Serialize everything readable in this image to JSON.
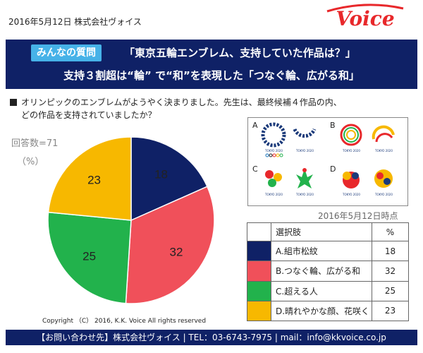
{
  "header": {
    "date_company": "2016年5月12日 株式会社ヴォイス",
    "logo_text": "Voice"
  },
  "banner": {
    "badge": "みんなの質問",
    "headline1": "「東京五輪エンブレム、支持していた作品は？」",
    "headline2": "支持３割超は“輪” で“和”を表現した「つなぐ輪、広がる和」"
  },
  "question": {
    "line1": "オリンピックのエンブレムがようやく決まりました。先生は、最終候補４作品の内、",
    "line2": "どの作品を支持されていましたか？"
  },
  "respondents": "回答数=71",
  "unit": "（%）",
  "emblems": {
    "letters": [
      "A",
      "B",
      "C",
      "D"
    ],
    "caption": "TOKYO 2020"
  },
  "as_of": "2016年5月12日時点",
  "table": {
    "header_option": "選択肢",
    "header_pct": "%"
  },
  "chart_data": {
    "type": "pie",
    "title": "",
    "slices": [
      {
        "label": "A.組市松紋",
        "value": 18,
        "color": "#0f2166"
      },
      {
        "label": "B.つなぐ輪、広がる和",
        "value": 32,
        "color": "#f0505a"
      },
      {
        "label": "C.超える人",
        "value": 25,
        "color": "#22b24c"
      },
      {
        "label": "D.晴れやかな顔、花咲く",
        "value": 23,
        "color": "#f7b800"
      }
    ]
  },
  "copyright": "Copyright （C） 2016, K.K. Voice All rights reserved",
  "footer": "【お問い合わせ先】株式会社ヴォイス | TEL：03-6743-7975 | mail：info@kkvoice.co.jp"
}
